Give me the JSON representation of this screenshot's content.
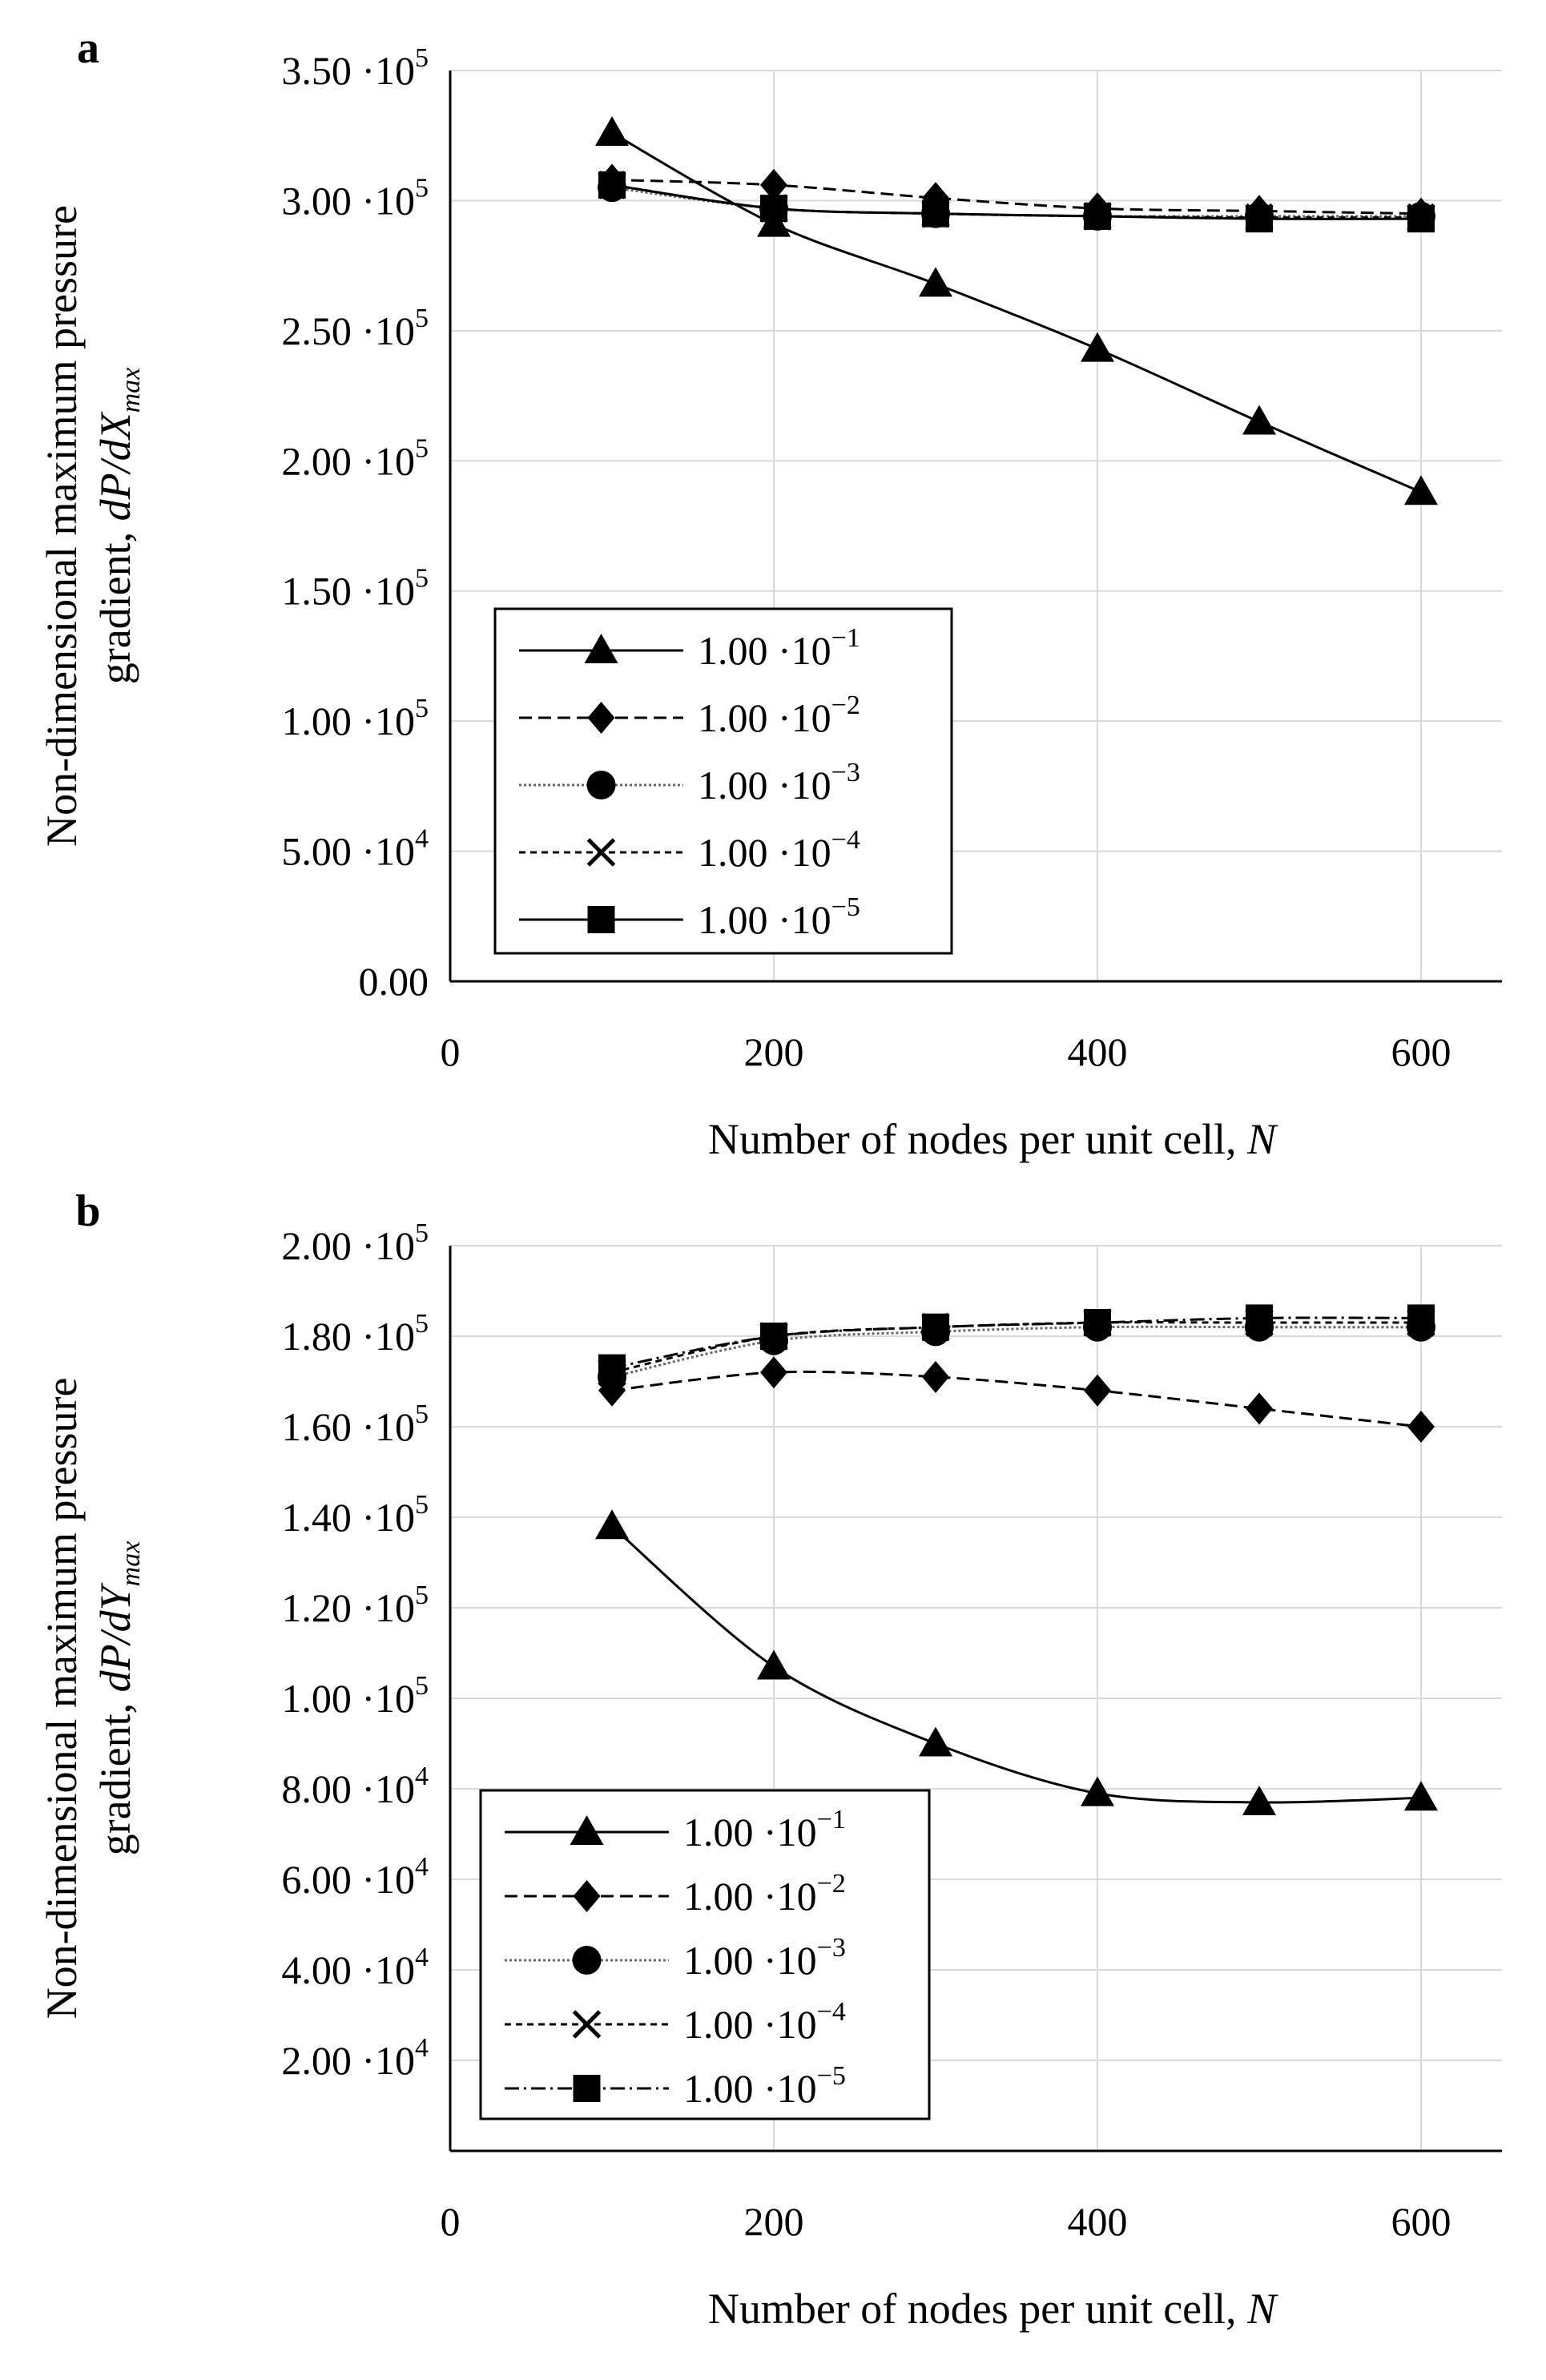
{
  "chart_data": [
    {
      "panel_label": "a",
      "type": "line",
      "xlabel": "Number of nodes per unit cell,",
      "xlabel_var": "N",
      "ylabel_line1": "Non-dimensional maximum pressure",
      "ylabel_line2_prefix": "gradient,",
      "ylabel_var": "dP/dX",
      "ylabel_sub": "max",
      "xlim": [
        0,
        650
      ],
      "ylim": [
        0,
        350000
      ],
      "x_ticks": [
        0,
        200,
        400,
        600
      ],
      "y_ticks": [
        {
          "mant": "0.00",
          "exp": ""
        },
        {
          "mant": "5.00 ·10",
          "exp": "4"
        },
        {
          "mant": "1.00 ·10",
          "exp": "5"
        },
        {
          "mant": "1.50 ·10",
          "exp": "5"
        },
        {
          "mant": "2.00 ·10",
          "exp": "5"
        },
        {
          "mant": "2.50 ·10",
          "exp": "5"
        },
        {
          "mant": "3.00 ·10",
          "exp": "5"
        },
        {
          "mant": "3.50 ·10",
          "exp": "5"
        }
      ],
      "legend_position": "lower-left",
      "x": [
        100,
        200,
        300,
        400,
        500,
        600
      ],
      "series": [
        {
          "name": "1.00 ·10",
          "exp": "−1",
          "marker": "triangle",
          "dash": "",
          "stroke": "#000000",
          "values": [
            326000,
            291000,
            268000,
            243000,
            215000,
            188000
          ]
        },
        {
          "name": "1.00 ·10",
          "exp": "−2",
          "marker": "diamond",
          "dash": "16 8",
          "stroke": "#000000",
          "values": [
            308000,
            306000,
            301000,
            297000,
            296000,
            295000
          ]
        },
        {
          "name": "1.00 ·10",
          "exp": "−3",
          "marker": "circle",
          "dash": "3 3",
          "stroke": "#666666",
          "values": [
            305000,
            297000,
            295000,
            294000,
            294000,
            294000
          ]
        },
        {
          "name": "1.00 ·10",
          "exp": "−4",
          "marker": "x",
          "dash": "8 6",
          "stroke": "#000000",
          "values": [
            306000,
            297000,
            295000,
            294000,
            293500,
            293500
          ]
        },
        {
          "name": "1.00 ·10",
          "exp": "−5",
          "marker": "square",
          "dash": "",
          "stroke": "#000000",
          "values": [
            306000,
            297000,
            295000,
            294000,
            293000,
            293000
          ]
        }
      ]
    },
    {
      "panel_label": "b",
      "type": "line",
      "xlabel": "Number of nodes per unit cell,",
      "xlabel_var": "N",
      "ylabel_line1": "Non-dimensional maximum pressure",
      "ylabel_line2_prefix": "gradient,",
      "ylabel_var": "dP/dY",
      "ylabel_sub": "max",
      "xlim": [
        0,
        650
      ],
      "ylim": [
        0,
        200000
      ],
      "x_ticks": [
        0,
        200,
        400,
        600
      ],
      "y_ticks": [
        {
          "mant": "2.00 ·10",
          "exp": "4"
        },
        {
          "mant": "4.00 ·10",
          "exp": "4"
        },
        {
          "mant": "6.00 ·10",
          "exp": "4"
        },
        {
          "mant": "8.00 ·10",
          "exp": "4"
        },
        {
          "mant": "1.00 ·10",
          "exp": "5"
        },
        {
          "mant": "1.20 ·10",
          "exp": "5"
        },
        {
          "mant": "1.40 ·10",
          "exp": "5"
        },
        {
          "mant": "1.60 ·10",
          "exp": "5"
        },
        {
          "mant": "1.80 ·10",
          "exp": "5"
        },
        {
          "mant": "2.00 ·10",
          "exp": "5"
        }
      ],
      "legend_position": "lower-left",
      "x": [
        100,
        200,
        300,
        400,
        500,
        600
      ],
      "series": [
        {
          "name": "1.00 ·10",
          "exp": "−1",
          "marker": "triangle",
          "dash": "",
          "stroke": "#000000",
          "values": [
            138000,
            107000,
            90000,
            79000,
            77000,
            78000
          ]
        },
        {
          "name": "1.00 ·10",
          "exp": "−2",
          "marker": "diamond",
          "dash": "16 8",
          "stroke": "#000000",
          "values": [
            168000,
            172000,
            171000,
            168000,
            164000,
            160000
          ]
        },
        {
          "name": "1.00 ·10",
          "exp": "−3",
          "marker": "circle",
          "dash": "3 3",
          "stroke": "#666666",
          "values": [
            171000,
            179000,
            181000,
            182000,
            182000,
            182000
          ]
        },
        {
          "name": "1.00 ·10",
          "exp": "−4",
          "marker": "x",
          "dash": "8 6",
          "stroke": "#000000",
          "values": [
            172000,
            180000,
            182000,
            183000,
            183000,
            183000
          ]
        },
        {
          "name": "1.00 ·10",
          "exp": "−5",
          "marker": "square",
          "dash": "18 6 3 6",
          "stroke": "#000000",
          "values": [
            173000,
            180000,
            182000,
            183000,
            184000,
            184000
          ]
        }
      ]
    }
  ]
}
